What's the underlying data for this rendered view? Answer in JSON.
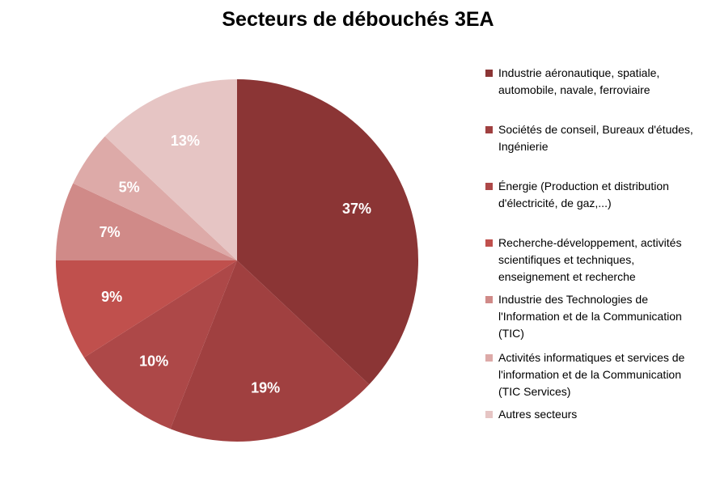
{
  "chart_data": {
    "type": "pie",
    "title": "Secteurs de débouchés 3EA",
    "legend_position": "right",
    "slices": [
      {
        "label_lines": [
          "Industrie aéronautique, spatiale,",
          "automobile, navale, ferroviaire"
        ],
        "value": 37,
        "display": "37%",
        "color": "#8B3535"
      },
      {
        "label_lines": [
          "Sociétés de conseil, Bureaux d'études,",
          "Ingénierie"
        ],
        "value": 19,
        "display": "19%",
        "color": "#A04040"
      },
      {
        "label_lines": [
          "Énergie (Production et distribution",
          "d'électricité, de gaz,...)"
        ],
        "value": 10,
        "display": "10%",
        "color": "#AD4848"
      },
      {
        "label_lines": [
          "Recherche-développement, activités",
          "scientifiques et techniques,",
          "enseignement et recherche"
        ],
        "value": 9,
        "display": "9%",
        "color": "#C0504D"
      },
      {
        "label_lines": [
          "Industrie des Technologies de",
          "l'Information et de la Communication",
          "(TIC)"
        ],
        "value": 7,
        "display": "7%",
        "color": "#D08A88"
      },
      {
        "label_lines": [
          "Activités informatiques et services de",
          "l'information et de la Communication",
          "(TIC Services)"
        ],
        "value": 5,
        "display": "5%",
        "color": "#DDAAA8"
      },
      {
        "label_lines": [
          "Autres secteurs"
        ],
        "value": 13,
        "display": "13%",
        "color": "#E6C5C4"
      }
    ]
  }
}
